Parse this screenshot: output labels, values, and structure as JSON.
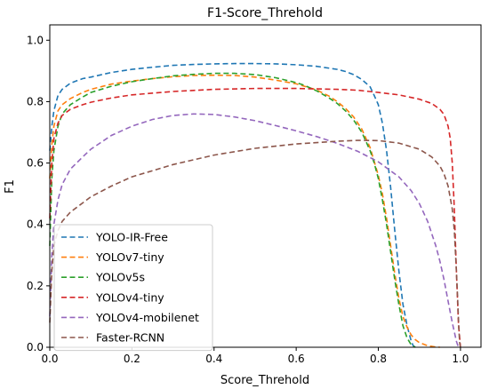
{
  "chart_data": {
    "type": "line",
    "title": "F1-Score_Threhold",
    "xlabel": "Score_Threhold",
    "ylabel": "F1",
    "xlim": [
      0.0,
      1.05
    ],
    "ylim": [
      0.0,
      1.05
    ],
    "xticks": [
      "0.0",
      "0.2",
      "0.4",
      "0.6",
      "0.8",
      "1.0"
    ],
    "yticks": [
      "0.0",
      "0.2",
      "0.4",
      "0.6",
      "0.8",
      "1.0"
    ],
    "xtick_values": [
      0.0,
      0.2,
      0.4,
      0.6,
      0.8,
      1.0
    ],
    "ytick_values": [
      0.0,
      0.2,
      0.4,
      0.6,
      0.8,
      1.0
    ],
    "grid": false,
    "legend_position": "lower-left",
    "line_style": "dashed",
    "series": [
      {
        "name": "YOLO-IR-Free",
        "color": "#1f77b4",
        "x": [
          0,
          0.005,
          0.01,
          0.02,
          0.03,
          0.05,
          0.08,
          0.1,
          0.15,
          0.2,
          0.25,
          0.3,
          0.35,
          0.4,
          0.45,
          0.5,
          0.55,
          0.6,
          0.65,
          0.7,
          0.72,
          0.74,
          0.76,
          0.78,
          0.79,
          0.8,
          0.81,
          0.82,
          0.83,
          0.84,
          0.85,
          0.86,
          0.87,
          0.88,
          0.885,
          0.89
        ],
        "y": [
          0.64,
          0.72,
          0.77,
          0.82,
          0.84,
          0.86,
          0.875,
          0.88,
          0.895,
          0.905,
          0.912,
          0.918,
          0.921,
          0.923,
          0.924,
          0.924,
          0.923,
          0.92,
          0.915,
          0.905,
          0.898,
          0.888,
          0.872,
          0.848,
          0.82,
          0.79,
          0.73,
          0.64,
          0.52,
          0.38,
          0.25,
          0.14,
          0.07,
          0.02,
          0.005,
          0.0
        ]
      },
      {
        "name": "YOLOv7-tiny",
        "color": "#ff7f0e",
        "x": [
          0,
          0.005,
          0.01,
          0.02,
          0.03,
          0.05,
          0.08,
          0.1,
          0.15,
          0.2,
          0.25,
          0.3,
          0.35,
          0.4,
          0.45,
          0.5,
          0.55,
          0.6,
          0.62,
          0.65,
          0.68,
          0.7,
          0.72,
          0.74,
          0.76,
          0.78,
          0.8,
          0.81,
          0.82,
          0.83,
          0.84,
          0.85,
          0.86,
          0.87,
          0.88,
          0.89,
          0.9,
          0.92,
          0.94,
          0.95
        ],
        "y": [
          0.55,
          0.66,
          0.72,
          0.77,
          0.79,
          0.81,
          0.83,
          0.84,
          0.857,
          0.867,
          0.875,
          0.881,
          0.885,
          0.886,
          0.885,
          0.88,
          0.87,
          0.858,
          0.85,
          0.838,
          0.818,
          0.8,
          0.778,
          0.75,
          0.71,
          0.65,
          0.56,
          0.5,
          0.42,
          0.33,
          0.24,
          0.16,
          0.1,
          0.065,
          0.04,
          0.025,
          0.015,
          0.005,
          0.001,
          0.0
        ]
      },
      {
        "name": "YOLOv5s",
        "color": "#2ca02c",
        "x": [
          0,
          0.005,
          0.01,
          0.02,
          0.03,
          0.05,
          0.08,
          0.1,
          0.15,
          0.2,
          0.25,
          0.3,
          0.35,
          0.4,
          0.45,
          0.5,
          0.55,
          0.6,
          0.62,
          0.65,
          0.68,
          0.7,
          0.72,
          0.74,
          0.76,
          0.78,
          0.79,
          0.8,
          0.81,
          0.82,
          0.83,
          0.84,
          0.85,
          0.86,
          0.87,
          0.88,
          0.89
        ],
        "y": [
          0.33,
          0.55,
          0.64,
          0.72,
          0.76,
          0.79,
          0.815,
          0.83,
          0.85,
          0.865,
          0.875,
          0.884,
          0.889,
          0.892,
          0.892,
          0.888,
          0.878,
          0.862,
          0.853,
          0.835,
          0.812,
          0.794,
          0.77,
          0.74,
          0.7,
          0.64,
          0.6,
          0.55,
          0.48,
          0.4,
          0.31,
          0.22,
          0.14,
          0.07,
          0.03,
          0.008,
          0.0
        ]
      },
      {
        "name": "YOLOv4-tiny",
        "color": "#d62728",
        "x": [
          0,
          0.005,
          0.01,
          0.02,
          0.03,
          0.05,
          0.08,
          0.1,
          0.15,
          0.2,
          0.3,
          0.4,
          0.5,
          0.6,
          0.7,
          0.75,
          0.8,
          0.85,
          0.9,
          0.93,
          0.95,
          0.96,
          0.97,
          0.975,
          0.98,
          0.985,
          0.99,
          0.995,
          1.0
        ],
        "y": [
          0.42,
          0.6,
          0.68,
          0.73,
          0.755,
          0.775,
          0.79,
          0.798,
          0.812,
          0.822,
          0.833,
          0.84,
          0.843,
          0.843,
          0.84,
          0.837,
          0.83,
          0.822,
          0.808,
          0.794,
          0.775,
          0.758,
          0.72,
          0.68,
          0.6,
          0.45,
          0.25,
          0.08,
          0.0
        ]
      },
      {
        "name": "YOLOv4-mobilenet",
        "color": "#9467bd",
        "x": [
          0,
          0.005,
          0.01,
          0.02,
          0.03,
          0.05,
          0.08,
          0.1,
          0.15,
          0.2,
          0.25,
          0.3,
          0.35,
          0.4,
          0.45,
          0.5,
          0.55,
          0.6,
          0.65,
          0.7,
          0.75,
          0.8,
          0.85,
          0.88,
          0.9,
          0.92,
          0.94,
          0.95,
          0.96,
          0.97,
          0.98,
          0.99,
          0.995
        ],
        "y": [
          0.1,
          0.3,
          0.4,
          0.48,
          0.53,
          0.58,
          0.62,
          0.645,
          0.69,
          0.72,
          0.742,
          0.755,
          0.76,
          0.758,
          0.75,
          0.738,
          0.722,
          0.705,
          0.686,
          0.664,
          0.638,
          0.604,
          0.555,
          0.51,
          0.468,
          0.41,
          0.33,
          0.28,
          0.22,
          0.15,
          0.08,
          0.02,
          0.0
        ]
      },
      {
        "name": "Faster-RCNN",
        "color": "#8c564b",
        "x": [
          0,
          0.005,
          0.01,
          0.02,
          0.03,
          0.05,
          0.08,
          0.1,
          0.15,
          0.2,
          0.3,
          0.4,
          0.5,
          0.6,
          0.7,
          0.75,
          0.8,
          0.85,
          0.9,
          0.93,
          0.95,
          0.96,
          0.97,
          0.98,
          0.985,
          0.99,
          0.993,
          0.996,
          0.998,
          1.0
        ],
        "y": [
          0.08,
          0.25,
          0.33,
          0.38,
          0.41,
          0.44,
          0.47,
          0.49,
          0.525,
          0.555,
          0.595,
          0.626,
          0.648,
          0.662,
          0.671,
          0.674,
          0.673,
          0.665,
          0.645,
          0.62,
          0.59,
          0.565,
          0.525,
          0.45,
          0.38,
          0.25,
          0.16,
          0.06,
          0.015,
          0.0
        ]
      }
    ]
  }
}
